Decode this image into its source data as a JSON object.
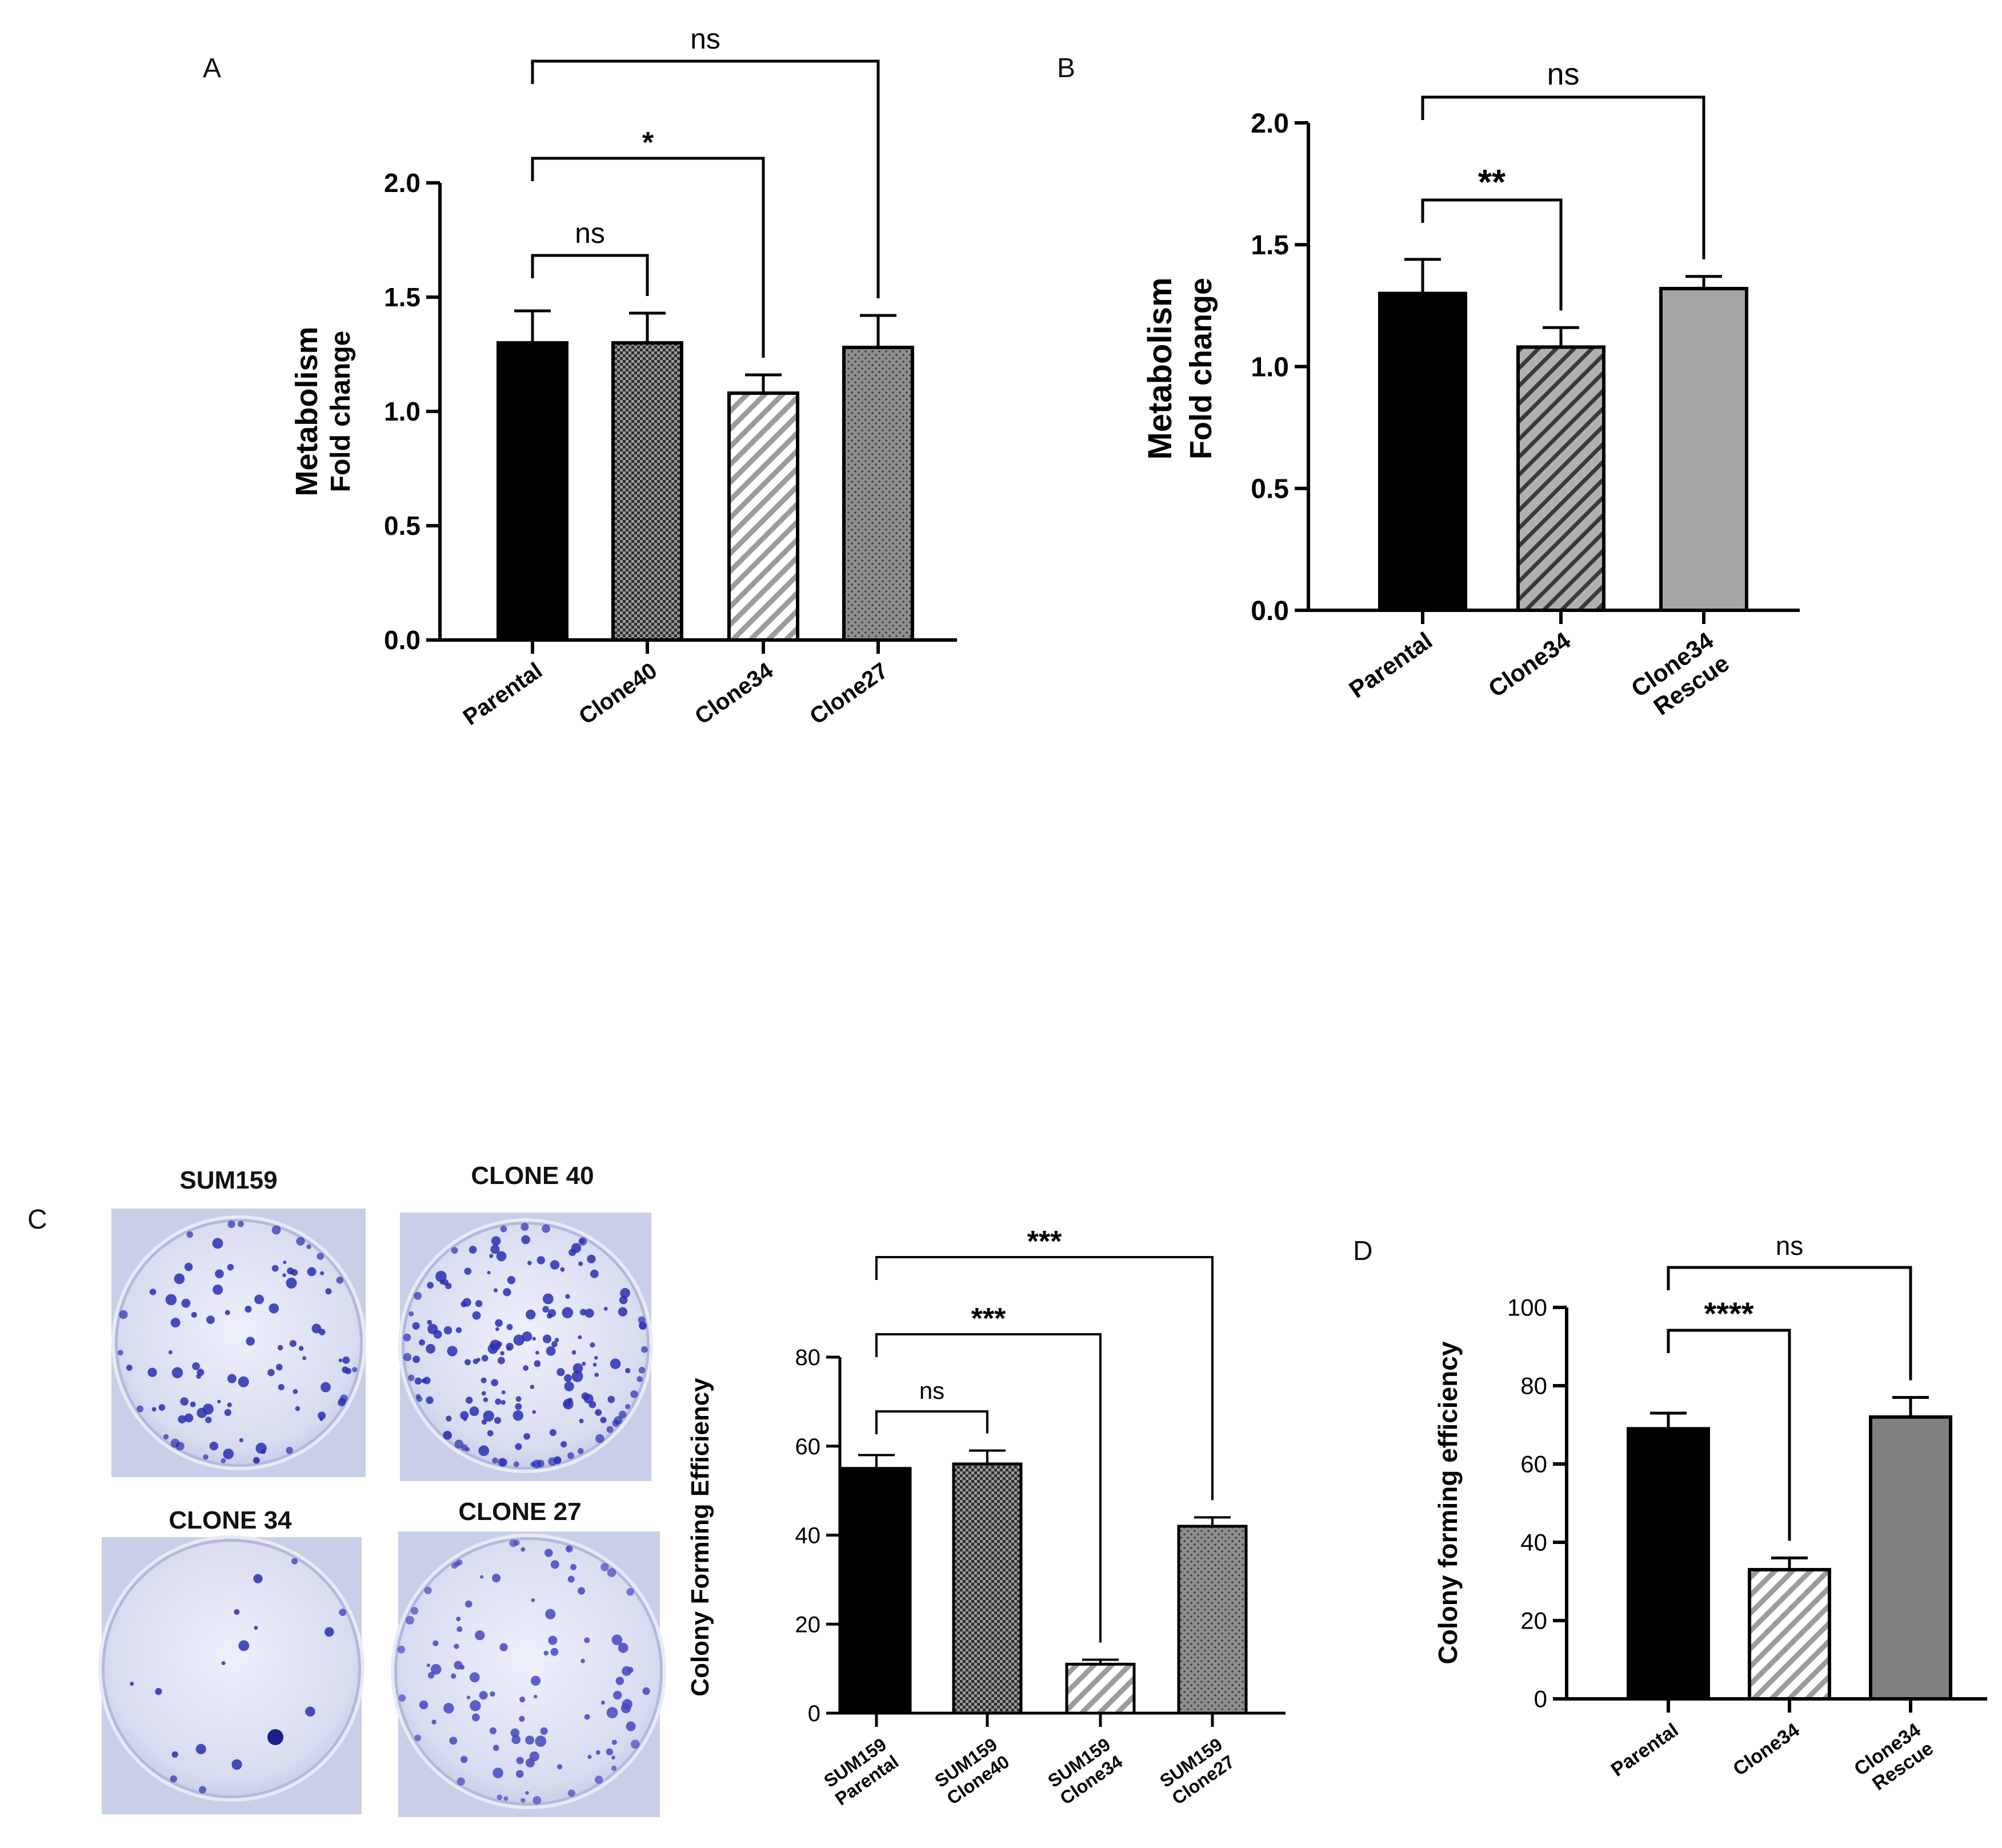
{
  "panels": {
    "A": "A",
    "B": "B",
    "C": "C",
    "D": "D"
  },
  "photos": [
    {
      "label": "SUM159",
      "colony_count": 70,
      "colony_color": "#2a2fb0"
    },
    {
      "label": "CLONE 40",
      "colony_count": 130,
      "colony_color": "#2a2fb0"
    },
    {
      "label": "CLONE 34",
      "colony_count": 12,
      "colony_color": "#2a2fb0"
    },
    {
      "label": "CLONE 27",
      "colony_count": 75,
      "colony_color": "#4446c0"
    }
  ],
  "chart_data": [
    {
      "id": "A",
      "type": "bar",
      "categories": [
        "Parental",
        "Clone40",
        "Clone34",
        "Clone27"
      ],
      "values": [
        1.3,
        1.3,
        1.08,
        1.28
      ],
      "errors": [
        0.14,
        0.13,
        0.08,
        0.14
      ],
      "patterns": [
        "solid-black",
        "checker",
        "diagonal-white",
        "dots"
      ],
      "ylabel_line1": "Metabolism",
      "ylabel_line2": "Fold change",
      "xlabel": "",
      "ylim": [
        0,
        2.0
      ],
      "yticks": [
        0.0,
        0.5,
        1.0,
        1.5,
        2.0
      ],
      "tick_labels": [
        "0.0",
        "0.5",
        "1.0",
        "1.5",
        "2.0"
      ],
      "grid": false,
      "significance": [
        {
          "from": 0,
          "to": 1,
          "label": "ns",
          "level": 0
        },
        {
          "from": 0,
          "to": 2,
          "label": "*",
          "level": 1
        },
        {
          "from": 0,
          "to": 3,
          "label": "ns",
          "level": 2
        }
      ]
    },
    {
      "id": "B",
      "type": "bar",
      "categories": [
        "Parental",
        "Clone34",
        "Clone34\nRescue"
      ],
      "values": [
        1.3,
        1.08,
        1.32
      ],
      "errors": [
        0.14,
        0.08,
        0.05
      ],
      "patterns": [
        "solid-black",
        "diagonal-gray",
        "solid-gray"
      ],
      "ylabel_line1": "Metabolism",
      "ylabel_line2": "Fold change",
      "xlabel": "",
      "ylim": [
        0,
        2.0
      ],
      "yticks": [
        0.0,
        0.5,
        1.0,
        1.5,
        2.0
      ],
      "tick_labels": [
        "0.0",
        "0.5",
        "1.0",
        "1.5",
        "2.0"
      ],
      "grid": false,
      "significance": [
        {
          "from": 0,
          "to": 1,
          "label": "**",
          "level": 0
        },
        {
          "from": 0,
          "to": 2,
          "label": "ns",
          "level": 1
        }
      ]
    },
    {
      "id": "C",
      "type": "bar",
      "categories": [
        "SUM159\nParental",
        "SUM159\nClone40",
        "SUM159\nClone34",
        "SUM159\nClone27"
      ],
      "values": [
        55,
        56,
        11,
        42
      ],
      "errors": [
        3,
        3,
        1,
        2
      ],
      "patterns": [
        "solid-black",
        "checker",
        "diagonal-white",
        "dots"
      ],
      "ylabel_line1": "Colony Forming Efficiency",
      "ylabel_line2": "",
      "xlabel": "",
      "ylim": [
        0,
        80
      ],
      "yticks": [
        0,
        20,
        40,
        60,
        80
      ],
      "tick_labels": [
        "0",
        "20",
        "40",
        "60",
        "80"
      ],
      "grid": false,
      "significance": [
        {
          "from": 0,
          "to": 1,
          "label": "ns",
          "level": 0
        },
        {
          "from": 0,
          "to": 2,
          "label": "***",
          "level": 1
        },
        {
          "from": 0,
          "to": 3,
          "label": "***",
          "level": 2
        }
      ]
    },
    {
      "id": "D",
      "type": "bar",
      "categories": [
        "Parental",
        "Clone34",
        "Clone34\nRescue"
      ],
      "values": [
        69,
        33,
        72
      ],
      "errors": [
        4,
        3,
        5
      ],
      "patterns": [
        "solid-black",
        "diagonal-white",
        "solid-darkgray"
      ],
      "ylabel_line1": "Colony forming efficiency",
      "ylabel_line2": "",
      "xlabel": "",
      "ylim": [
        0,
        100
      ],
      "yticks": [
        0,
        20,
        40,
        60,
        80,
        100
      ],
      "tick_labels": [
        "0",
        "20",
        "40",
        "60",
        "80",
        "100"
      ],
      "grid": false,
      "significance": [
        {
          "from": 0,
          "to": 1,
          "label": "****",
          "level": 0
        },
        {
          "from": 0,
          "to": 2,
          "label": "ns",
          "level": 1
        }
      ]
    }
  ]
}
